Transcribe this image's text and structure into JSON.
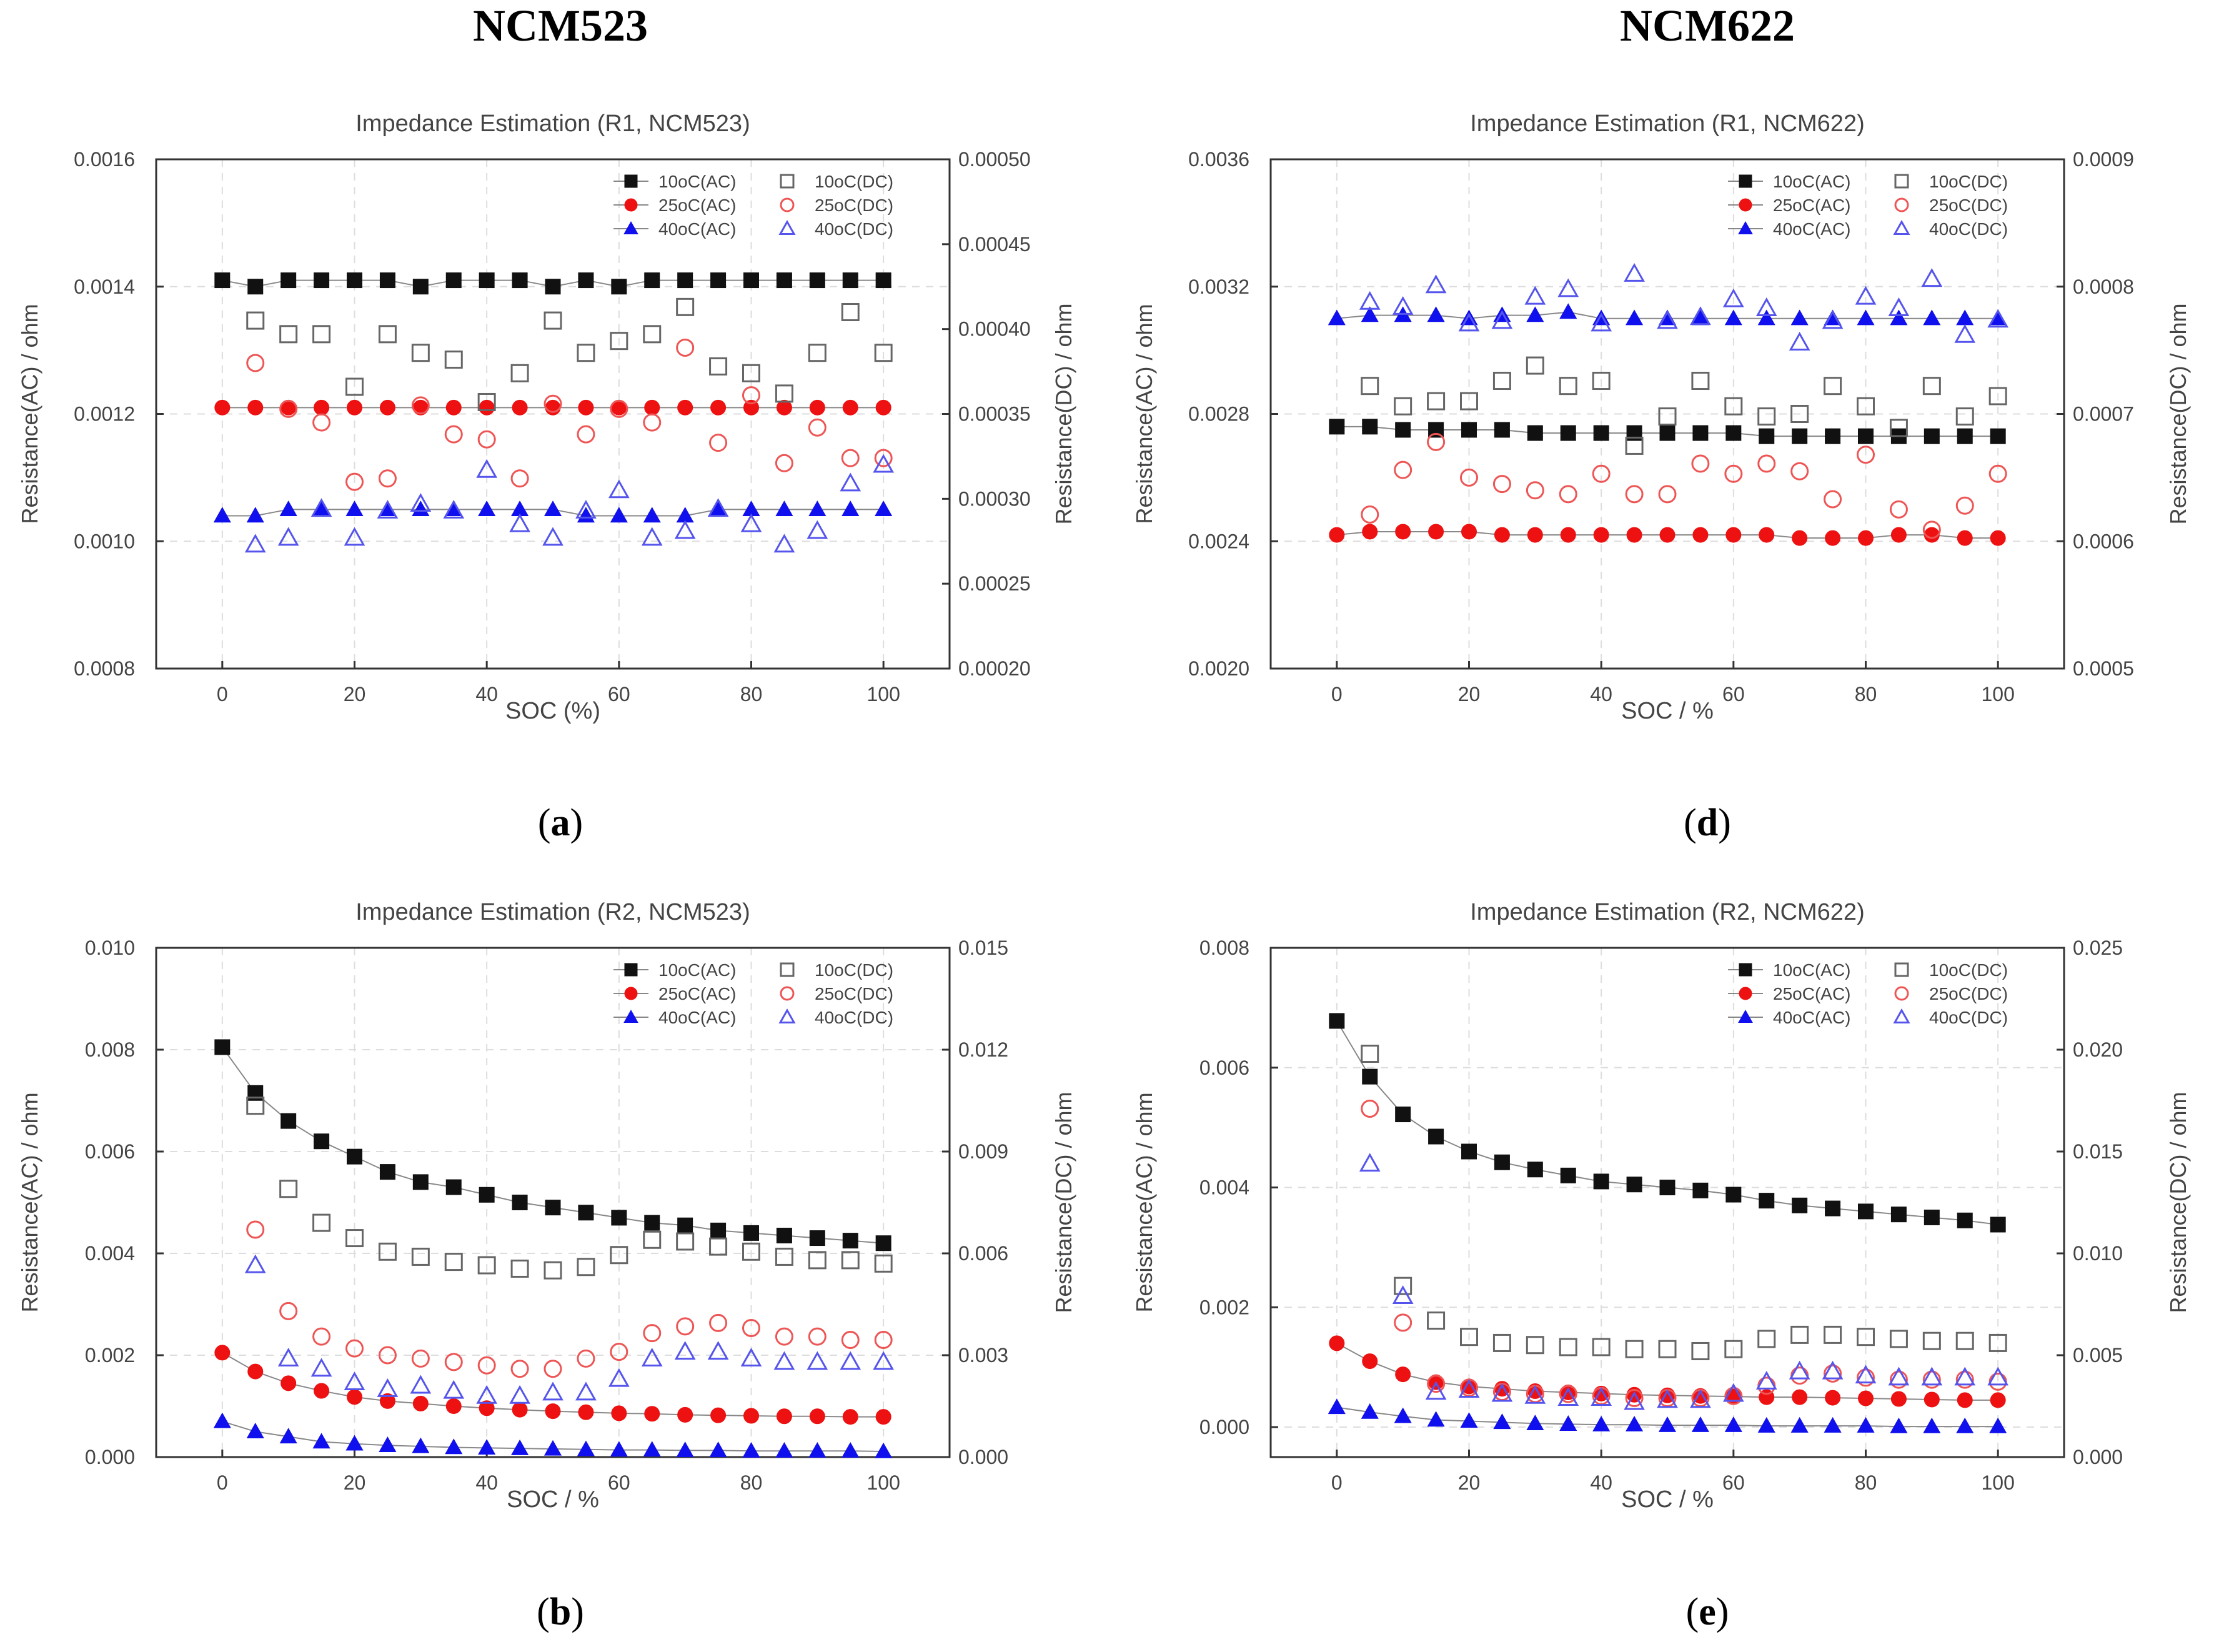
{
  "header": {
    "left_title": "NCM523",
    "right_title": "NCM622"
  },
  "labels": {
    "a": "a",
    "d": "d",
    "b": "b",
    "e": "e"
  },
  "colors": {
    "c10": "#111111",
    "c25": "#ee1111",
    "c40": "#1010ee",
    "dc10": "#666666",
    "dc25": "#ee5555",
    "dc40": "#5555ee",
    "grid": "#dddddd"
  },
  "chart_data": [
    {
      "id": "a",
      "type": "scatter",
      "title": "Impedance Estimation (R1, NCM523)",
      "xlabel": "SOC (%)",
      "ylabel": "Resistance(AC) / ohm",
      "y2label": "Resistance(DC) / ohm",
      "xlim": [
        -10,
        110
      ],
      "xticks": [
        "0",
        "20",
        "40",
        "60",
        "80",
        "100"
      ],
      "ylim": [
        0.0008,
        0.0016
      ],
      "yticks": [
        "0.0008",
        "0.0010",
        "0.0012",
        "0.0014",
        "0.0016"
      ],
      "y2lim": [
        0.0002,
        0.0005
      ],
      "y2ticks": [
        "0.00020",
        "0.00025",
        "0.00030",
        "0.00035",
        "0.00040",
        "0.00045",
        "0.00050"
      ],
      "legend": [
        "10oC(AC)",
        "25oC(AC)",
        "40oC(AC)",
        "10oC(DC)",
        "25oC(DC)",
        "40oC(DC)"
      ],
      "x": [
        0,
        5,
        10,
        15,
        20,
        25,
        30,
        35,
        40,
        45,
        50,
        55,
        60,
        65,
        70,
        75,
        80,
        85,
        90,
        95,
        100
      ],
      "x_dc": [
        5,
        10,
        15,
        20,
        25,
        30,
        35,
        40,
        45,
        50,
        55,
        60,
        65,
        70,
        75,
        80,
        85,
        90,
        95,
        100
      ],
      "series": [
        {
          "name": "10oC(AC)",
          "axis": "left",
          "values": [
            0.00141,
            0.0014,
            0.00141,
            0.00141,
            0.00141,
            0.00141,
            0.0014,
            0.00141,
            0.00141,
            0.00141,
            0.0014,
            0.00141,
            0.0014,
            0.00141,
            0.00141,
            0.00141,
            0.00141,
            0.00141,
            0.00141,
            0.00141,
            0.00141
          ]
        },
        {
          "name": "25oC(AC)",
          "axis": "left",
          "values": [
            0.00121,
            0.00121,
            0.00121,
            0.00121,
            0.00121,
            0.00121,
            0.00121,
            0.00121,
            0.00121,
            0.00121,
            0.00121,
            0.00121,
            0.00121,
            0.00121,
            0.00121,
            0.00121,
            0.00121,
            0.00121,
            0.00121,
            0.00121,
            0.00121
          ]
        },
        {
          "name": "40oC(AC)",
          "axis": "left",
          "values": [
            0.00104,
            0.00104,
            0.00105,
            0.00105,
            0.00105,
            0.00105,
            0.00105,
            0.00105,
            0.00105,
            0.00105,
            0.00105,
            0.00104,
            0.00104,
            0.00104,
            0.00104,
            0.00105,
            0.00105,
            0.00105,
            0.00105,
            0.00105,
            0.00105
          ]
        },
        {
          "name": "10oC(DC)",
          "axis": "right",
          "values": [
            0.000405,
            0.000397,
            0.000397,
            0.000366,
            0.000397,
            0.000386,
            0.000382,
            0.000357,
            0.000374,
            0.000405,
            0.000386,
            0.000393,
            0.000397,
            0.000413,
            0.000378,
            0.000374,
            0.000362,
            0.000386,
            0.00041,
            0.000386
          ]
        },
        {
          "name": "25oC(DC)",
          "axis": "right",
          "values": [
            0.00038,
            0.000353,
            0.000345,
            0.00031,
            0.000312,
            0.000355,
            0.000338,
            0.000335,
            0.000312,
            0.000356,
            0.000338,
            0.000353,
            0.000345,
            0.000389,
            0.000333,
            0.000361,
            0.000321,
            0.000342,
            0.000324,
            0.000324
          ]
        },
        {
          "name": "40oC(DC)",
          "axis": "right",
          "values": [
            0.000273,
            0.000277,
            0.000294,
            0.000277,
            0.000293,
            0.000297,
            0.000293,
            0.000317,
            0.000285,
            0.000277,
            0.000293,
            0.000305,
            0.000277,
            0.000281,
            0.000294,
            0.000285,
            0.000273,
            0.000281,
            0.000309,
            0.00032
          ]
        }
      ]
    },
    {
      "id": "d",
      "type": "scatter",
      "title": "Impedance Estimation (R1, NCM622)",
      "xlabel": "SOC / %",
      "ylabel": "Resistance(AC) / ohm",
      "y2label": "Resistance(DC) / ohm",
      "xlim": [
        -10,
        110
      ],
      "xticks": [
        "0",
        "20",
        "40",
        "60",
        "80",
        "100"
      ],
      "ylim": [
        0.002,
        0.0036
      ],
      "yticks": [
        "0.0020",
        "0.0024",
        "0.0028",
        "0.0032",
        "0.0036"
      ],
      "y2lim": [
        0.0005,
        0.0009
      ],
      "y2ticks": [
        "0.0005",
        "0.0006",
        "0.0007",
        "0.0008",
        "0.0009"
      ],
      "legend": [
        "10oC(AC)",
        "25oC(AC)",
        "40oC(AC)",
        "10oC(DC)",
        "25oC(DC)",
        "40oC(DC)"
      ],
      "x": [
        0,
        5,
        10,
        15,
        20,
        25,
        30,
        35,
        40,
        45,
        50,
        55,
        60,
        65,
        70,
        75,
        80,
        85,
        90,
        95,
        100
      ],
      "x_dc": [
        5,
        10,
        15,
        20,
        25,
        30,
        35,
        40,
        45,
        50,
        55,
        60,
        65,
        70,
        75,
        80,
        85,
        90,
        95,
        100
      ],
      "series": [
        {
          "name": "10oC(AC)",
          "axis": "left",
          "values": [
            0.00276,
            0.00276,
            0.00275,
            0.00275,
            0.00275,
            0.00275,
            0.00274,
            0.00274,
            0.00274,
            0.00274,
            0.00274,
            0.00274,
            0.00274,
            0.00273,
            0.00273,
            0.00273,
            0.00273,
            0.00273,
            0.00273,
            0.00273,
            0.00273
          ]
        },
        {
          "name": "25oC(AC)",
          "axis": "left",
          "values": [
            0.00242,
            0.00243,
            0.00243,
            0.00243,
            0.00243,
            0.00242,
            0.00242,
            0.00242,
            0.00242,
            0.00242,
            0.00242,
            0.00242,
            0.00242,
            0.00242,
            0.00241,
            0.00241,
            0.00241,
            0.00242,
            0.00242,
            0.00241,
            0.00241
          ]
        },
        {
          "name": "40oC(AC)",
          "axis": "left",
          "values": [
            0.0031,
            0.00311,
            0.00311,
            0.00311,
            0.0031,
            0.00311,
            0.00311,
            0.00312,
            0.0031,
            0.0031,
            0.0031,
            0.0031,
            0.0031,
            0.0031,
            0.0031,
            0.0031,
            0.0031,
            0.0031,
            0.0031,
            0.0031,
            0.0031
          ]
        },
        {
          "name": "10oC(DC)",
          "axis": "right",
          "values": [
            0.000722,
            0.000706,
            0.00071,
            0.00071,
            0.000726,
            0.000738,
            0.000722,
            0.000726,
            0.000675,
            0.000698,
            0.000726,
            0.000706,
            0.000698,
            0.0007,
            0.000722,
            0.000706,
            0.000689,
            0.000722,
            0.000698,
            0.000714
          ]
        },
        {
          "name": "25oC(DC)",
          "axis": "right",
          "values": [
            0.000621,
            0.000656,
            0.000678,
            0.00065,
            0.000645,
            0.00064,
            0.000637,
            0.000653,
            0.000637,
            0.000637,
            0.000661,
            0.000653,
            0.000661,
            0.000655,
            0.000633,
            0.000668,
            0.000625,
            0.000609,
            0.000628,
            0.000653
          ]
        },
        {
          "name": "40oC(DC)",
          "axis": "right",
          "values": [
            0.000788,
            0.000784,
            0.000801,
            0.000771,
            0.000773,
            0.000792,
            0.000798,
            0.000771,
            0.00081,
            0.000773,
            0.000776,
            0.00079,
            0.000783,
            0.000756,
            0.000773,
            0.000792,
            0.000783,
            0.000806,
            0.000762,
            0.000774
          ]
        }
      ]
    },
    {
      "id": "b",
      "type": "scatter",
      "title": "Impedance Estimation (R2, NCM523)",
      "xlabel": "SOC / %",
      "ylabel": "Resistance(AC) / ohm",
      "y2label": "Resistance(DC) / ohm",
      "xlim": [
        -10,
        110
      ],
      "xticks": [
        "0",
        "20",
        "40",
        "60",
        "80",
        "100"
      ],
      "ylim": [
        0,
        0.01
      ],
      "yticks": [
        "0.000",
        "0.002",
        "0.004",
        "0.006",
        "0.008",
        "0.010"
      ],
      "y2lim": [
        0,
        0.015
      ],
      "y2ticks": [
        "0.000",
        "0.003",
        "0.006",
        "0.009",
        "0.012",
        "0.015"
      ],
      "legend": [
        "10oC(AC)",
        "25oC(AC)",
        "40oC(AC)",
        "10oC(DC)",
        "25oC(DC)",
        "40oC(DC)"
      ],
      "x": [
        0,
        5,
        10,
        15,
        20,
        25,
        30,
        35,
        40,
        45,
        50,
        55,
        60,
        65,
        70,
        75,
        80,
        85,
        90,
        95,
        100
      ],
      "x_dc": [
        5,
        10,
        15,
        20,
        25,
        30,
        35,
        40,
        45,
        50,
        55,
        60,
        65,
        70,
        75,
        80,
        85,
        90,
        95,
        100
      ],
      "series": [
        {
          "name": "10oC(AC)",
          "axis": "left",
          "values": [
            0.00805,
            0.00715,
            0.0066,
            0.0062,
            0.0059,
            0.0056,
            0.0054,
            0.0053,
            0.00515,
            0.005,
            0.0049,
            0.0048,
            0.0047,
            0.0046,
            0.00455,
            0.00445,
            0.0044,
            0.00435,
            0.0043,
            0.00425,
            0.0042
          ]
        },
        {
          "name": "25oC(AC)",
          "axis": "left",
          "values": [
            0.00205,
            0.00168,
            0.00145,
            0.0013,
            0.00118,
            0.0011,
            0.00105,
            0.001,
            0.00096,
            0.00093,
            0.0009,
            0.00088,
            0.00086,
            0.00085,
            0.00083,
            0.00082,
            0.00081,
            0.0008,
            0.0008,
            0.00079,
            0.00079
          ]
        },
        {
          "name": "40oC(AC)",
          "axis": "left",
          "values": [
            0.0007,
            0.0005,
            0.0004,
            0.0003,
            0.00026,
            0.00023,
            0.00021,
            0.00019,
            0.00018,
            0.00017,
            0.00016,
            0.00015,
            0.00014,
            0.00014,
            0.00013,
            0.00013,
            0.00012,
            0.00012,
            0.00012,
            0.00012,
            0.00011
          ]
        },
        {
          "name": "10oC(DC)",
          "axis": "right",
          "values": [
            0.01035,
            0.0079,
            0.0069,
            0.00645,
            0.00605,
            0.0059,
            0.00575,
            0.00565,
            0.00555,
            0.0055,
            0.0056,
            0.00595,
            0.0064,
            0.00635,
            0.0062,
            0.00605,
            0.0059,
            0.0058,
            0.0058,
            0.0057
          ]
        },
        {
          "name": "25oC(DC)",
          "axis": "right",
          "values": [
            0.0067,
            0.0043,
            0.00355,
            0.0032,
            0.003,
            0.0029,
            0.0028,
            0.0027,
            0.0026,
            0.0026,
            0.0029,
            0.0031,
            0.00365,
            0.00385,
            0.00395,
            0.0038,
            0.00355,
            0.00355,
            0.00345,
            0.00345
          ]
        },
        {
          "name": "40oC(DC)",
          "axis": "right",
          "values": [
            0.00565,
            0.0029,
            0.0026,
            0.0022,
            0.002,
            0.0021,
            0.00195,
            0.0018,
            0.0018,
            0.0019,
            0.0019,
            0.0023,
            0.0029,
            0.0031,
            0.0031,
            0.0029,
            0.0028,
            0.0028,
            0.0028,
            0.0028
          ]
        }
      ]
    },
    {
      "id": "e",
      "type": "scatter",
      "title": "Impedance Estimation (R2, NCM622)",
      "xlabel": "SOC / %",
      "ylabel": "Resistance(AC) / ohm",
      "y2label": "Resistance(DC) / ohm",
      "xlim": [
        -10,
        110
      ],
      "xticks": [
        "0",
        "20",
        "40",
        "60",
        "80",
        "100"
      ],
      "ylim": [
        -0.0005,
        0.008
      ],
      "yticks": [
        "0.000",
        "0.002",
        "0.004",
        "0.006",
        "0.008"
      ],
      "y2lim": [
        0,
        0.025
      ],
      "y2ticks": [
        "0.000",
        "0.005",
        "0.010",
        "0.015",
        "0.020",
        "0.025"
      ],
      "legend": [
        "10oC(AC)",
        "25oC(AC)",
        "40oC(AC)",
        "10oC(DC)",
        "25oC(DC)",
        "40oC(DC)"
      ],
      "x": [
        0,
        5,
        10,
        15,
        20,
        25,
        30,
        35,
        40,
        45,
        50,
        55,
        60,
        65,
        70,
        75,
        80,
        85,
        90,
        95,
        100
      ],
      "x_dc": [
        5,
        10,
        15,
        20,
        25,
        30,
        35,
        40,
        45,
        50,
        55,
        60,
        65,
        70,
        75,
        80,
        85,
        90,
        95,
        100
      ],
      "series": [
        {
          "name": "10oC(AC)",
          "axis": "left",
          "values": [
            0.00678,
            0.00585,
            0.00522,
            0.00485,
            0.0046,
            0.00442,
            0.0043,
            0.0042,
            0.0041,
            0.00405,
            0.004,
            0.00395,
            0.00388,
            0.00378,
            0.0037,
            0.00365,
            0.0036,
            0.00355,
            0.0035,
            0.00345,
            0.00338
          ]
        },
        {
          "name": "25oC(AC)",
          "axis": "left",
          "values": [
            0.0014,
            0.0011,
            0.00088,
            0.00075,
            0.00068,
            0.00064,
            0.0006,
            0.00058,
            0.00056,
            0.00054,
            0.00053,
            0.00052,
            0.00051,
            0.0005,
            0.0005,
            0.00049,
            0.00048,
            0.00047,
            0.00046,
            0.00045,
            0.00045
          ]
        },
        {
          "name": "40oC(AC)",
          "axis": "left",
          "values": [
            0.00033,
            0.00025,
            0.00018,
            0.00012,
            0.0001,
            8e-05,
            6e-05,
            5e-05,
            4e-05,
            4e-05,
            3e-05,
            3e-05,
            3e-05,
            2e-05,
            2e-05,
            2e-05,
            2e-05,
            1e-05,
            1e-05,
            1e-05,
            1e-05
          ]
        },
        {
          "name": "10oC(DC)",
          "axis": "right",
          "values": [
            0.0198,
            0.0084,
            0.0067,
            0.0059,
            0.0056,
            0.0055,
            0.0054,
            0.0054,
            0.0053,
            0.0053,
            0.0052,
            0.0053,
            0.0058,
            0.006,
            0.006,
            0.0059,
            0.0058,
            0.0057,
            0.0057,
            0.0056
          ]
        },
        {
          "name": "25oC(DC)",
          "axis": "right",
          "values": [
            0.0171,
            0.0066,
            0.0036,
            0.0034,
            0.0032,
            0.0031,
            0.0031,
            0.003,
            0.0029,
            0.0029,
            0.0029,
            0.003,
            0.0035,
            0.004,
            0.0041,
            0.0039,
            0.0038,
            0.0038,
            0.0038,
            0.0037
          ]
        },
        {
          "name": "40oC(DC)",
          "axis": "right",
          "values": [
            0.0144,
            0.0079,
            0.0032,
            0.0033,
            0.0031,
            0.003,
            0.0029,
            0.0029,
            0.0027,
            0.0028,
            0.0028,
            0.0031,
            0.0037,
            0.0042,
            0.0042,
            0.004,
            0.0039,
            0.0039,
            0.0039,
            0.0039
          ]
        }
      ]
    }
  ]
}
